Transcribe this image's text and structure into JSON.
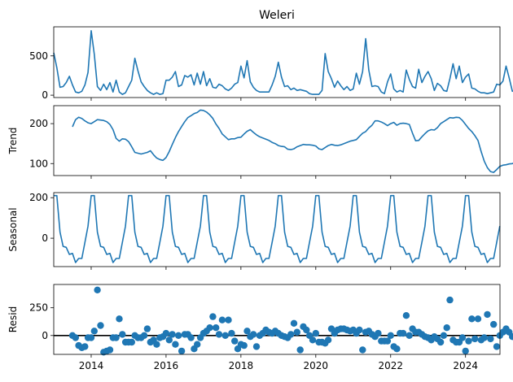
{
  "chart_data": {
    "type": "line",
    "title": "Weleri",
    "colors": {
      "series": "#1f77b4",
      "axes": "#000000",
      "zero_line": "#000000"
    },
    "x_axis": {
      "type": "date",
      "range": [
        "2013-01",
        "2024-12"
      ],
      "tick_labels": [
        "2014",
        "2016",
        "2018",
        "2020",
        "2022",
        "2024"
      ],
      "tick_labels_shown_on": "bottom panel only"
    },
    "panels": [
      {
        "name": "observed",
        "ylabel": "",
        "type": "line",
        "ylim": [
          -30,
          870
        ],
        "yticks": [
          0,
          500
        ],
        "ytick_labels": [
          "0",
          "500"
        ],
        "start": "2013-01",
        "values": [
          540,
          350,
          100,
          110,
          160,
          240,
          130,
          40,
          30,
          50,
          130,
          290,
          820,
          520,
          110,
          60,
          140,
          70,
          160,
          40,
          190,
          40,
          10,
          30,
          110,
          190,
          470,
          310,
          170,
          110,
          60,
          30,
          10,
          30,
          10,
          20,
          190,
          190,
          230,
          300,
          110,
          130,
          250,
          230,
          260,
          130,
          280,
          140,
          300,
          120,
          210,
          100,
          90,
          140,
          120,
          80,
          60,
          90,
          140,
          160,
          370,
          220,
          440,
          170,
          100,
          60,
          40,
          40,
          40,
          40,
          130,
          240,
          420,
          230,
          110,
          120,
          70,
          90,
          60,
          70,
          60,
          50,
          20,
          10,
          10,
          10,
          60,
          530,
          300,
          210,
          100,
          180,
          120,
          70,
          110,
          60,
          80,
          280,
          140,
          300,
          720,
          320,
          110,
          120,
          110,
          40,
          20,
          170,
          270,
          80,
          40,
          60,
          40,
          320,
          200,
          110,
          90,
          330,
          160,
          240,
          300,
          210,
          60,
          150,
          120,
          60,
          50,
          210,
          400,
          210,
          370,
          160,
          230,
          270,
          90,
          80,
          50,
          30,
          30,
          20,
          30,
          40,
          140,
          130,
          180,
          370,
          220,
          50,
          60,
          50,
          10,
          70,
          110,
          170,
          250,
          340
        ]
      },
      {
        "name": "trend",
        "ylabel": "Trend",
        "type": "line",
        "ylim": [
          70,
          245
        ],
        "yticks": [
          100,
          200
        ],
        "ytick_labels": [
          "100",
          "200"
        ],
        "start": "2013-07",
        "values": [
          192,
          210,
          216,
          213,
          207,
          202,
          200,
          205,
          210,
          209,
          208,
          205,
          198,
          185,
          163,
          156,
          162,
          161,
          155,
          142,
          128,
          126,
          124,
          126,
          128,
          132,
          122,
          114,
          110,
          108,
          115,
          130,
          148,
          165,
          180,
          193,
          205,
          215,
          220,
          225,
          228,
          234,
          233,
          229,
          222,
          213,
          199,
          188,
          174,
          167,
          160,
          162,
          162,
          165,
          166,
          174,
          181,
          185,
          178,
          172,
          167,
          164,
          161,
          158,
          153,
          150,
          145,
          143,
          142,
          136,
          135,
          137,
          142,
          145,
          148,
          147,
          147,
          146,
          144,
          137,
          135,
          140,
          145,
          148,
          146,
          145,
          147,
          150,
          153,
          156,
          158,
          160,
          168,
          176,
          180,
          189,
          196,
          207,
          207,
          204,
          200,
          195,
          200,
          203,
          196,
          200,
          201,
          200,
          198,
          176,
          157,
          158,
          167,
          175,
          182,
          185,
          184,
          190,
          200,
          205,
          210,
          215,
          214,
          216,
          215,
          208,
          198,
          188,
          180,
          170,
          158,
          130,
          106,
          90,
          80,
          78,
          85,
          93,
          96,
          97,
          99,
          100,
          104,
          115,
          128,
          145
        ]
      },
      {
        "name": "seasonal",
        "ylabel": "Seasonal",
        "type": "line",
        "ylim": [
          -140,
          225
        ],
        "yticks": [
          0,
          200
        ],
        "ytick_labels": [
          "0",
          "200"
        ],
        "start": "2013-01",
        "pattern": [
          210,
          210,
          30,
          -40,
          -45,
          -80,
          -75,
          -120,
          -100,
          -100,
          -20,
          60
        ],
        "values": []
      },
      {
        "name": "resid",
        "ylabel": "Resid",
        "type": "scatter",
        "ylim": [
          -170,
          460
        ],
        "yticks": [
          0,
          250
        ],
        "ytick_labels": [
          "0",
          "250"
        ],
        "zero_line": true,
        "start": "2013-07",
        "values": [
          0,
          -20,
          -90,
          -110,
          -100,
          -20,
          -20,
          40,
          410,
          90,
          -150,
          -140,
          -130,
          -20,
          -20,
          150,
          10,
          -60,
          -60,
          -60,
          0,
          -20,
          -20,
          0,
          60,
          -60,
          -40,
          -80,
          -20,
          -10,
          20,
          -40,
          10,
          -80,
          0,
          -140,
          10,
          10,
          -20,
          -120,
          -80,
          -20,
          20,
          40,
          70,
          170,
          70,
          10,
          140,
          0,
          140,
          20,
          -50,
          -120,
          -80,
          -90,
          40,
          -10,
          10,
          -100,
          0,
          20,
          50,
          30,
          20,
          40,
          20,
          0,
          -10,
          -20,
          10,
          110,
          30,
          -130,
          80,
          50,
          0,
          -40,
          20,
          -60,
          -60,
          -70,
          -40,
          60,
          20,
          50,
          60,
          60,
          50,
          40,
          50,
          20,
          50,
          -130,
          30,
          40,
          10,
          -10,
          20,
          -50,
          -50,
          -50,
          0,
          -100,
          -120,
          20,
          20,
          180,
          0,
          60,
          30,
          30,
          10,
          -10,
          -20,
          -40,
          -10,
          -30,
          -60,
          0,
          70,
          320,
          -40,
          -60,
          -60,
          -20,
          -140,
          -50,
          150,
          -30,
          150,
          -40,
          -20,
          190,
          -30,
          100,
          -100,
          0,
          30,
          60,
          30,
          -10,
          -20,
          20,
          0,
          50,
          270,
          0,
          130,
          -60,
          -140,
          -20,
          -40,
          -10,
          -10,
          -20,
          -20,
          -10,
          40,
          20,
          30,
          -30,
          -80,
          -120,
          -100,
          0,
          -20,
          230,
          140,
          -10,
          -40
        ]
      }
    ]
  }
}
